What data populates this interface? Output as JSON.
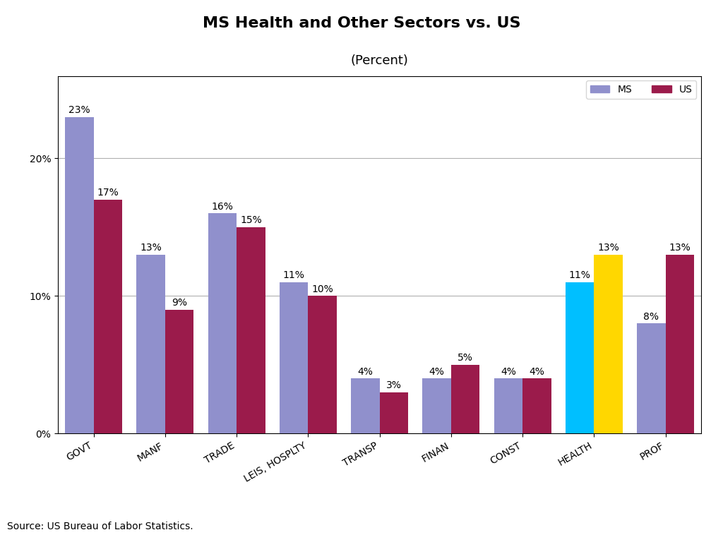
{
  "chart_data": {
    "type": "bar",
    "title": "MS Health and Other Sectors vs. US",
    "subtitle": "(Percent)",
    "annotations": [
      "Source: US Bureau of Labor Statistics."
    ],
    "categories": [
      "GOVT",
      "MANF",
      "TRADE",
      "LEIS, HOSPLTY",
      "TRANSP",
      "FINAN",
      "CONST",
      "HEALTH",
      "PROF"
    ],
    "series": [
      {
        "name": "MS",
        "color": "#9090CC",
        "colors": [
          "#9090CC",
          "#9090CC",
          "#9090CC",
          "#9090CC",
          "#9090CC",
          "#9090CC",
          "#9090CC",
          "#00BFFF",
          "#9090CC"
        ],
        "values": [
          23,
          13,
          16,
          11,
          4,
          4,
          4,
          11,
          8
        ],
        "value_labels": [
          "23%",
          "13%",
          "16%",
          "11%",
          "4%",
          "4%",
          "4%",
          "11%",
          "8%"
        ]
      },
      {
        "name": "US",
        "color": "#9B1B4B",
        "colors": [
          "#9B1B4B",
          "#9B1B4B",
          "#9B1B4B",
          "#9B1B4B",
          "#9B1B4B",
          "#9B1B4B",
          "#9B1B4B",
          "#FFD700",
          "#9B1B4B"
        ],
        "values": [
          17,
          9,
          15,
          10,
          3,
          5,
          4,
          13,
          13
        ],
        "value_labels": [
          "17%",
          "9%",
          "15%",
          "10%",
          "3%",
          "5%",
          "4%",
          "13%",
          "13%"
        ]
      }
    ],
    "ylim": [
      0,
      26
    ],
    "yticks": [
      {
        "value": 0,
        "label": "0%"
      },
      {
        "value": 10,
        "label": "10%"
      },
      {
        "value": 20,
        "label": "20%"
      }
    ],
    "grid": true,
    "legend": "upper right",
    "data_labels": true
  }
}
